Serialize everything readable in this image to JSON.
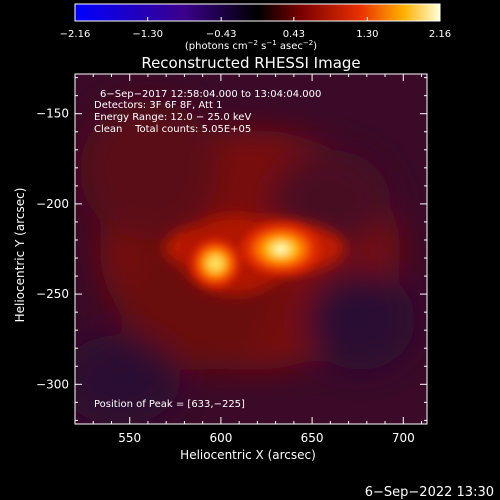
{
  "chart_data": {
    "type": "heatmap",
    "title": "Reconstructed RHESSI Image",
    "xlabel": "Heliocentric X (arcsec)",
    "ylabel": "Heliocentric Y (arcsec)",
    "xlim": [
      520,
      713
    ],
    "ylim": [
      -322,
      -128
    ],
    "x_ticks": [
      550,
      600,
      650,
      700
    ],
    "y_ticks": [
      -150,
      -200,
      -250,
      -300
    ],
    "x_tick_labels": [
      "550",
      "600",
      "650",
      "700"
    ],
    "y_tick_labels": [
      "−150",
      "−200",
      "−250",
      "−300"
    ],
    "colorbar": {
      "min": -2.16,
      "max": 2.16,
      "ticks": [
        -2.16,
        -1.3,
        -0.43,
        0.43,
        1.3,
        2.16
      ],
      "tick_labels": [
        "−2.16",
        "−1.30",
        "−0.43",
        "0.43",
        "1.30",
        "2.16"
      ],
      "unit_main": "(photons cm",
      "unit_exp1": "−2",
      "unit_mid": " s",
      "unit_exp2": "−1",
      "unit_mid2": " asec",
      "unit_exp3": "−2",
      "unit_end": ")",
      "colormap": "blue-purple-black-red-yellow-white"
    },
    "info_lines": [
      "6−Sep−2017 12:58:04.000 to 13:04:04.000",
      "Detectors: 3F 6F 8F, Att 1",
      "Energy Range: 12.0 − 25.0 keV",
      "Clean    Total counts: 5.05E+05"
    ],
    "peak_label": "Position of Peak = [633,−225]",
    "sources": [
      {
        "x": 633,
        "y": -225,
        "peak": 2.16,
        "sx": 9,
        "sy": 6
      },
      {
        "x": 597,
        "y": -233,
        "peak": 1.6,
        "sx": 6,
        "sy": 6
      }
    ],
    "footer_date": "6−Sep−2022 13:30"
  }
}
